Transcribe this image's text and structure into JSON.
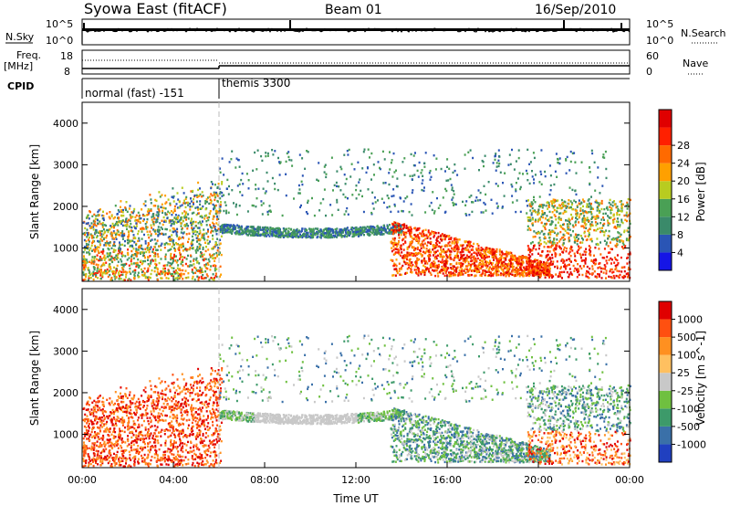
{
  "header": {
    "station": "Syowa East (fitACF)",
    "beam": "Beam 01",
    "date": "16/Sep/2010"
  },
  "strip_labels": {
    "nsky": "N.Sky",
    "nsearch": "N.Search",
    "freq_line1": "Freq.",
    "freq_line2": "[MHz]",
    "nave": "Nave",
    "cpid": "CPID",
    "nsky_top": "10^5",
    "nsky_bottom": "10^0",
    "nsearch_top": "10^5",
    "nsearch_bottom": "10^0",
    "freq_top": "18",
    "freq_bottom": "8",
    "nave_top": "60",
    "nave_bottom": "0"
  },
  "cpid_modes": [
    {
      "label": "normal (fast) -151",
      "start_hour": 0,
      "end_hour": 6
    },
    {
      "label": "themis 3300",
      "start_hour": 6,
      "end_hour": 24
    }
  ],
  "chart_data": [
    {
      "type": "heatmap",
      "name": "power",
      "ylabel": "Slant Range [km]",
      "xlabel": "",
      "ylim": [
        200,
        4500
      ],
      "xlim_hours": [
        0,
        24
      ],
      "yticks": [
        "1000",
        "2000",
        "3000",
        "4000"
      ],
      "colorbar": {
        "label": "Power [dB]",
        "ticks": [
          "4",
          "8",
          "12",
          "16",
          "20",
          "24",
          "28"
        ],
        "colors": [
          "#1515e6",
          "#2a55b5",
          "#3a8a6a",
          "#4aa055",
          "#b8cc20",
          "#ffa000",
          "#ff6a00",
          "#ff2000",
          "#e00000"
        ]
      }
    },
    {
      "type": "heatmap",
      "name": "velocity",
      "ylabel": "Slant Range [km]",
      "xlabel": "Time UT",
      "ylim": [
        200,
        4500
      ],
      "xlim_hours": [
        0,
        24
      ],
      "xticks": [
        "00:00",
        "04:00",
        "08:00",
        "12:00",
        "16:00",
        "20:00",
        "00:00"
      ],
      "yticks": [
        "1000",
        "2000",
        "3000",
        "4000"
      ],
      "colorbar": {
        "label": "Velocity [m s^-1]",
        "ticks": [
          "1000",
          "500",
          "100",
          "25",
          "-25",
          "-100",
          "-500",
          "-1000"
        ],
        "colors": [
          "#2040c0",
          "#3a70a8",
          "#3d9a6a",
          "#6fc040",
          "#c8c8c8",
          "#ffc060",
          "#ff9020",
          "#ff5010",
          "#e00000"
        ]
      }
    }
  ]
}
